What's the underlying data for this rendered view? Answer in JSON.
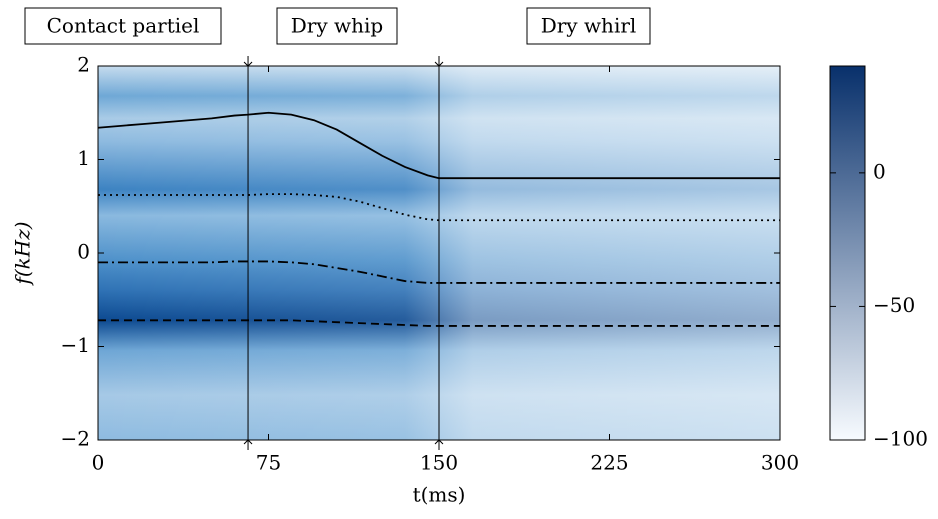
{
  "chart_data": {
    "type": "line",
    "x": [
      0,
      10,
      20,
      30,
      40,
      50,
      60,
      66,
      75,
      85,
      95,
      105,
      115,
      125,
      135,
      145,
      150,
      175,
      200,
      225,
      250,
      275,
      300
    ],
    "series": [
      {
        "style": "solid",
        "color": "#000000",
        "values": [
          1.34,
          1.36,
          1.38,
          1.4,
          1.42,
          1.44,
          1.47,
          1.48,
          1.5,
          1.48,
          1.42,
          1.32,
          1.18,
          1.04,
          0.92,
          0.83,
          0.8,
          0.8,
          0.8,
          0.8,
          0.8,
          0.8,
          0.8
        ]
      },
      {
        "style": "dotted",
        "color": "#000000",
        "values": [
          0.62,
          0.62,
          0.62,
          0.62,
          0.62,
          0.62,
          0.62,
          0.62,
          0.63,
          0.63,
          0.62,
          0.6,
          0.55,
          0.48,
          0.41,
          0.36,
          0.35,
          0.35,
          0.35,
          0.35,
          0.35,
          0.35,
          0.35
        ]
      },
      {
        "style": "dashdot",
        "color": "#000000",
        "values": [
          -0.1,
          -0.1,
          -0.1,
          -0.1,
          -0.1,
          -0.1,
          -0.09,
          -0.09,
          -0.09,
          -0.1,
          -0.12,
          -0.16,
          -0.2,
          -0.25,
          -0.3,
          -0.32,
          -0.32,
          -0.32,
          -0.32,
          -0.32,
          -0.32,
          -0.32,
          -0.32
        ]
      },
      {
        "style": "dashed",
        "color": "#000000",
        "values": [
          -0.72,
          -0.72,
          -0.72,
          -0.72,
          -0.72,
          -0.72,
          -0.72,
          -0.72,
          -0.72,
          -0.72,
          -0.73,
          -0.74,
          -0.75,
          -0.76,
          -0.77,
          -0.78,
          -0.78,
          -0.78,
          -0.78,
          -0.78,
          -0.78,
          -0.78,
          -0.78
        ]
      }
    ],
    "xlim": [
      0,
      300
    ],
    "xticks": [
      0,
      75,
      150,
      225,
      300
    ],
    "ylim": [
      -2,
      2
    ],
    "yticks": [
      {
        "value": -2,
        "label": "−2"
      },
      {
        "value": -1,
        "label": "−1"
      },
      0,
      1,
      2
    ],
    "x_label": "t(ms)",
    "y_label": "f(kHz)",
    "vlines": [
      66,
      150
    ],
    "regions": [
      "Contact partiel",
      "Dry whip",
      "Dry whirl"
    ],
    "colorbar": {
      "lim": [
        -100,
        40
      ],
      "ticks": [
        {
          "value": -100,
          "label": "−100"
        },
        {
          "value": -50,
          "label": "−50"
        },
        0
      ],
      "colors": [
        "#f7fbff",
        "#08306b"
      ]
    }
  }
}
